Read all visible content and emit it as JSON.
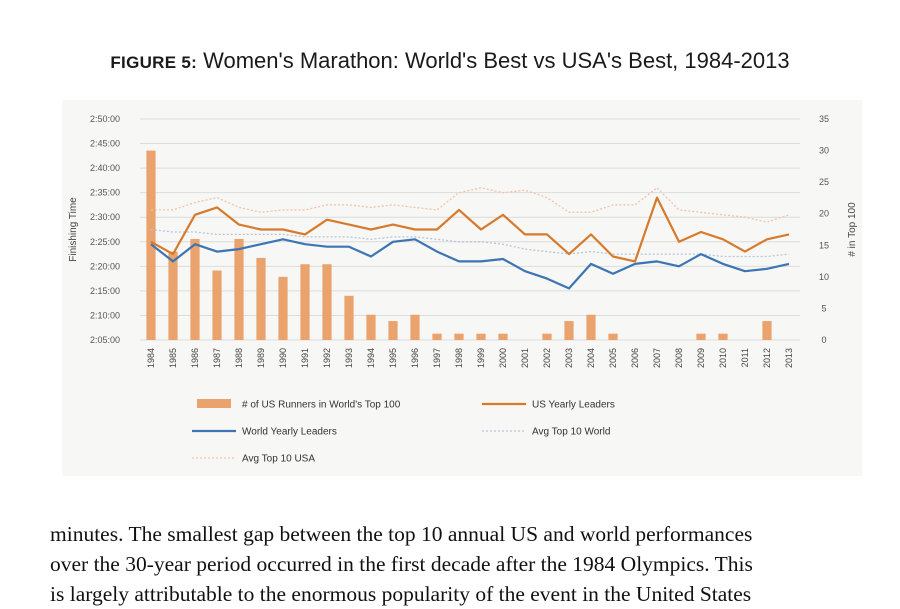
{
  "figure": {
    "number": "FIGURE 5:",
    "title": "Women's Marathon: World's Best vs USA's Best, 1984-2013"
  },
  "chart_data": {
    "type": "bar+line",
    "ylabel": "Finishing Time",
    "y2label": "# in Top 100",
    "y_ticks": [
      "2:05:00",
      "2:10:00",
      "2:15:00",
      "2:20:00",
      "2:25:00",
      "2:30:00",
      "2:35:00",
      "2:40:00",
      "2:45:00",
      "2:50:00"
    ],
    "ylim_seconds": [
      7500,
      10200
    ],
    "y2_ticks": [
      "0",
      "5",
      "10",
      "15",
      "20",
      "25",
      "30",
      "35"
    ],
    "y2lim": [
      0,
      35
    ],
    "grid": true,
    "legend_position": "bottom",
    "categories": [
      "1984",
      "1985",
      "1986",
      "1987",
      "1988",
      "1989",
      "1990",
      "1991",
      "1992",
      "1993",
      "1994",
      "1995",
      "1996",
      "1997",
      "1998",
      "1999",
      "2000",
      "2001",
      "2002",
      "2003",
      "2004",
      "2005",
      "2006",
      "2007",
      "2008",
      "2009",
      "2010",
      "2011",
      "2012",
      "2013"
    ],
    "series": [
      {
        "name": "# of US Runners in World's Top 100",
        "kind": "bar",
        "axis": "right",
        "color": "#eba36e",
        "values": [
          30,
          14,
          16,
          11,
          16,
          13,
          10,
          12,
          12,
          7,
          4,
          3,
          4,
          1,
          1,
          1,
          1,
          0,
          1,
          3,
          4,
          1,
          0,
          0,
          0,
          1,
          1,
          0,
          3,
          0
        ]
      },
      {
        "name": "US Yearly Leaders",
        "kind": "line",
        "axis": "left",
        "color": "#d77a2c",
        "width": 2.2,
        "values": [
          "2:25:00",
          "2:22:30",
          "2:30:30",
          "2:32:00",
          "2:28:30",
          "2:27:30",
          "2:27:30",
          "2:26:30",
          "2:29:30",
          "2:28:30",
          "2:27:30",
          "2:28:30",
          "2:27:30",
          "2:27:30",
          "2:31:30",
          "2:27:30",
          "2:30:30",
          "2:26:30",
          "2:26:30",
          "2:22:30",
          "2:26:30",
          "2:22:00",
          "2:21:00",
          "2:34:00",
          "2:25:00",
          "2:27:00",
          "2:25:30",
          "2:23:00",
          "2:25:30",
          "2:26:30"
        ]
      },
      {
        "name": "World Yearly Leaders",
        "kind": "line",
        "axis": "left",
        "color": "#3c74b4",
        "width": 2.2,
        "values": [
          "2:24:30",
          "2:21:00",
          "2:24:30",
          "2:23:00",
          "2:23:30",
          "2:24:30",
          "2:25:30",
          "2:24:30",
          "2:24:00",
          "2:24:00",
          "2:22:00",
          "2:25:00",
          "2:25:30",
          "2:23:00",
          "2:21:00",
          "2:21:00",
          "2:21:30",
          "2:19:00",
          "2:17:30",
          "2:15:30",
          "2:20:30",
          "2:18:30",
          "2:20:30",
          "2:21:00",
          "2:20:00",
          "2:22:30",
          "2:20:30",
          "2:19:00",
          "2:19:30",
          "2:20:30"
        ]
      },
      {
        "name": "Avg Top 10 World",
        "kind": "line",
        "axis": "left",
        "color": "#b7c5da",
        "width": 1.3,
        "dash": "2,2",
        "values": [
          "2:27:30",
          "2:27:00",
          "2:27:00",
          "2:26:30",
          "2:26:30",
          "2:26:30",
          "2:26:30",
          "2:26:00",
          "2:26:00",
          "2:26:00",
          "2:25:30",
          "2:26:00",
          "2:26:00",
          "2:25:30",
          "2:25:00",
          "2:25:00",
          "2:24:30",
          "2:23:30",
          "2:23:00",
          "2:22:30",
          "2:23:00",
          "2:22:30",
          "2:22:30",
          "2:22:30",
          "2:22:30",
          "2:22:30",
          "2:22:00",
          "2:22:00",
          "2:22:00",
          "2:22:30"
        ]
      },
      {
        "name": "Avg Top 10 USA",
        "kind": "line",
        "axis": "left",
        "color": "#f3c2a3",
        "width": 1.3,
        "dash": "2,2",
        "values": [
          "2:31:30",
          "2:31:30",
          "2:33:00",
          "2:34:00",
          "2:32:00",
          "2:31:00",
          "2:31:30",
          "2:31:30",
          "2:32:30",
          "2:32:30",
          "2:32:00",
          "2:32:30",
          "2:32:00",
          "2:31:30",
          "2:35:00",
          "2:36:00",
          "2:35:00",
          "2:35:30",
          "2:34:00",
          "2:31:00",
          "2:31:00",
          "2:32:30",
          "2:32:30",
          "2:36:00",
          "2:31:30",
          "2:31:00",
          "2:30:30",
          "2:30:00",
          "2:29:00",
          "2:30:30"
        ]
      }
    ]
  },
  "body_text": {
    "line1": "minutes. The smallest gap between the top 10 annual US and world performances",
    "line2": "over the 30-year period occurred in the first decade after the 1984 Olympics. This",
    "line3": "is largely attributable to the enormous popularity of the event in the United States"
  }
}
